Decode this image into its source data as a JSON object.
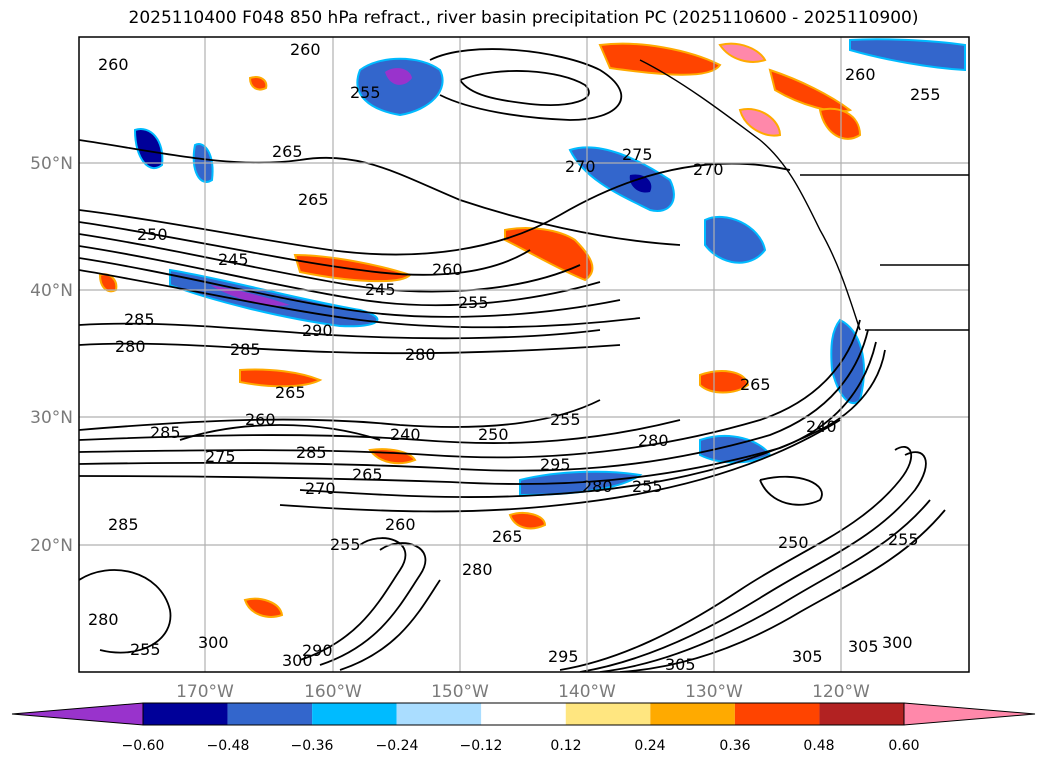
{
  "title": "2025110400 F048 850 hPa refract., river basin precipitation PC (2025110600 - 2025110900)",
  "latitudes": [
    "50°N",
    "40°N",
    "30°N",
    "20°N"
  ],
  "longitudes": [
    "170°W",
    "160°W",
    "150°W",
    "140°W",
    "130°W",
    "120°W"
  ],
  "colorbar": {
    "ticks": [
      "−0.60",
      "−0.48",
      "−0.36",
      "−0.24",
      "−0.12",
      "0.12",
      "0.24",
      "0.36",
      "0.48",
      "0.60"
    ],
    "colors": [
      "#9933cc",
      "#000099",
      "#3366cc",
      "#00bbff",
      "#aaddff",
      "#ffffff",
      "#ffe680",
      "#ffaa00",
      "#ff4400",
      "#b22222",
      "#ff88aa"
    ]
  },
  "contour_labels": [
    "260",
    "260",
    "265",
    "265",
    "270",
    "275",
    "270",
    "260",
    "255",
    "255",
    "250",
    "245",
    "245",
    "260",
    "255",
    "285",
    "280",
    "290",
    "285",
    "280",
    "265",
    "285",
    "275",
    "260",
    "240",
    "250",
    "255",
    "280",
    "285",
    "265",
    "270",
    "295",
    "280",
    "255",
    "240",
    "285",
    "265",
    "260",
    "255",
    "250",
    "255",
    "280",
    "295",
    "305",
    "300",
    "290",
    "300",
    "305",
    "305",
    "300",
    "280",
    "255",
    "265"
  ]
}
